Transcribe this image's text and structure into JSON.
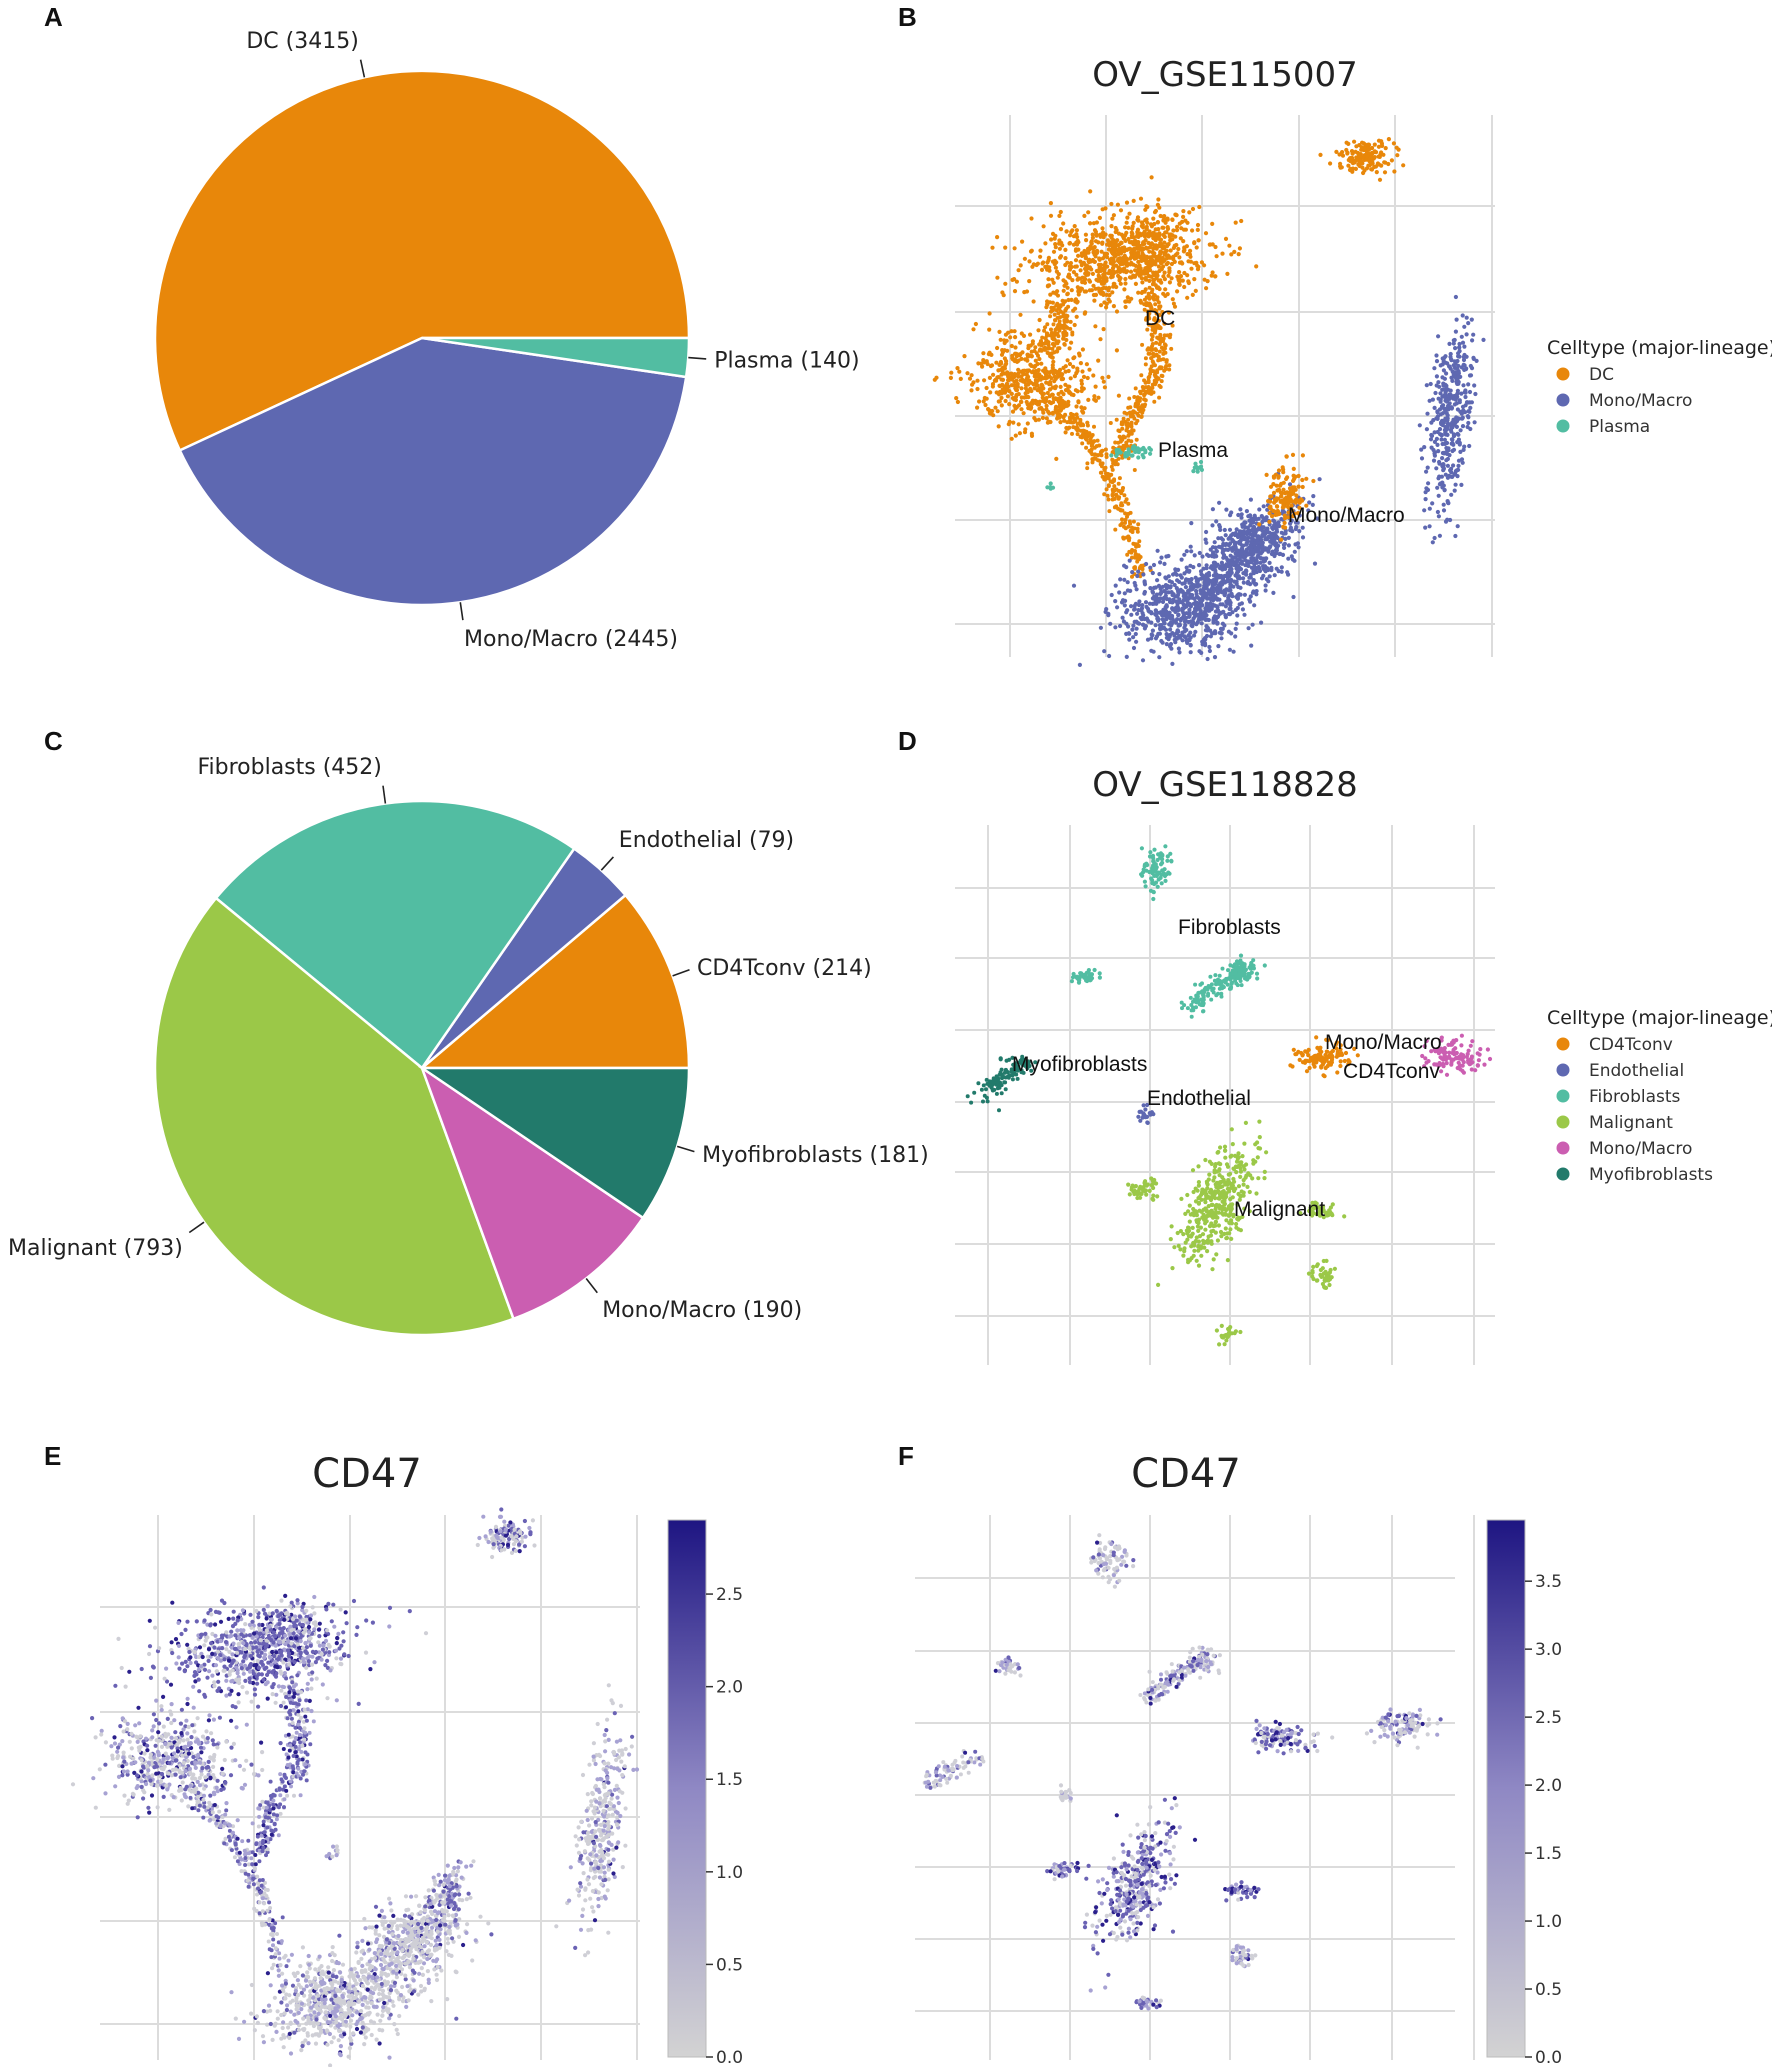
{
  "colors": {
    "orange": "#E8870A",
    "blue": "#5E68B1",
    "teal": "#52BDA2",
    "green": "#9BC848",
    "pink": "#CB5EB1",
    "darkteal": "#227A6B",
    "grid": "#DCDCDC",
    "cmap_low": "#D3D3D3",
    "cmap_high": "#1E1582"
  },
  "chart_data": [
    {
      "panel": "A",
      "type": "pie",
      "slices": [
        {
          "name": "DC",
          "value": 3415,
          "label": "DC (3415)",
          "color": "#E8870A"
        },
        {
          "name": "Mono/Macro",
          "value": 2445,
          "label": "Mono/Macro (2445)",
          "color": "#5E68B1"
        },
        {
          "name": "Plasma",
          "value": 140,
          "label": "Plasma (140)",
          "color": "#52BDA2"
        }
      ]
    },
    {
      "panel": "B",
      "type": "scatter",
      "title": "OV_GSE115007",
      "legend_title": "Celltype (major-lineage)",
      "legend": [
        {
          "name": "DC",
          "color": "#E8870A"
        },
        {
          "name": "Mono/Macro",
          "color": "#5E68B1"
        },
        {
          "name": "Plasma",
          "color": "#52BDA2"
        }
      ],
      "cluster_labels": [
        "DC",
        "Plasma",
        "Mono/Macro"
      ]
    },
    {
      "panel": "C",
      "type": "pie",
      "slices": [
        {
          "name": "CD4Tconv",
          "value": 214,
          "label": "CD4Tconv (214)",
          "color": "#E8870A"
        },
        {
          "name": "Endothelial",
          "value": 79,
          "label": "Endothelial (79)",
          "color": "#5E68B1"
        },
        {
          "name": "Fibroblasts",
          "value": 452,
          "label": "Fibroblasts (452)",
          "color": "#52BDA2"
        },
        {
          "name": "Malignant",
          "value": 793,
          "label": "Malignant (793)",
          "color": "#9BC848"
        },
        {
          "name": "Mono/Macro",
          "value": 190,
          "label": "Mono/Macro (190)",
          "color": "#CB5EB1"
        },
        {
          "name": "Myofibroblasts",
          "value": 181,
          "label": "Myofibroblasts (181)",
          "color": "#227A6B"
        }
      ]
    },
    {
      "panel": "D",
      "type": "scatter",
      "title": "OV_GSE118828",
      "legend_title": "Celltype (major-lineage)",
      "legend": [
        {
          "name": "CD4Tconv",
          "color": "#E8870A"
        },
        {
          "name": "Endothelial",
          "color": "#5E68B1"
        },
        {
          "name": "Fibroblasts",
          "color": "#52BDA2"
        },
        {
          "name": "Malignant",
          "color": "#9BC848"
        },
        {
          "name": "Mono/Macro",
          "color": "#CB5EB1"
        },
        {
          "name": "Myofibroblasts",
          "color": "#227A6B"
        }
      ],
      "cluster_labels": [
        "Fibroblasts",
        "Myofibroblasts",
        "Mono/Macro",
        "CD4Tconv",
        "Endothelial",
        "Malignant"
      ]
    },
    {
      "panel": "E",
      "type": "scatter",
      "title": "CD47",
      "colorbar_range": [
        0.0,
        2.9
      ],
      "colorbar_ticks": [
        "0.0",
        "0.5",
        "1.0",
        "1.5",
        "2.0",
        "2.5"
      ]
    },
    {
      "panel": "F",
      "type": "scatter",
      "title": "CD47",
      "colorbar_range": [
        0.0,
        3.95
      ],
      "colorbar_ticks": [
        "0.0",
        "0.5",
        "1.0",
        "1.5",
        "2.0",
        "2.5",
        "3.0",
        "3.5"
      ]
    }
  ],
  "panel_letters": [
    "A",
    "B",
    "C",
    "D",
    "E",
    "F"
  ]
}
